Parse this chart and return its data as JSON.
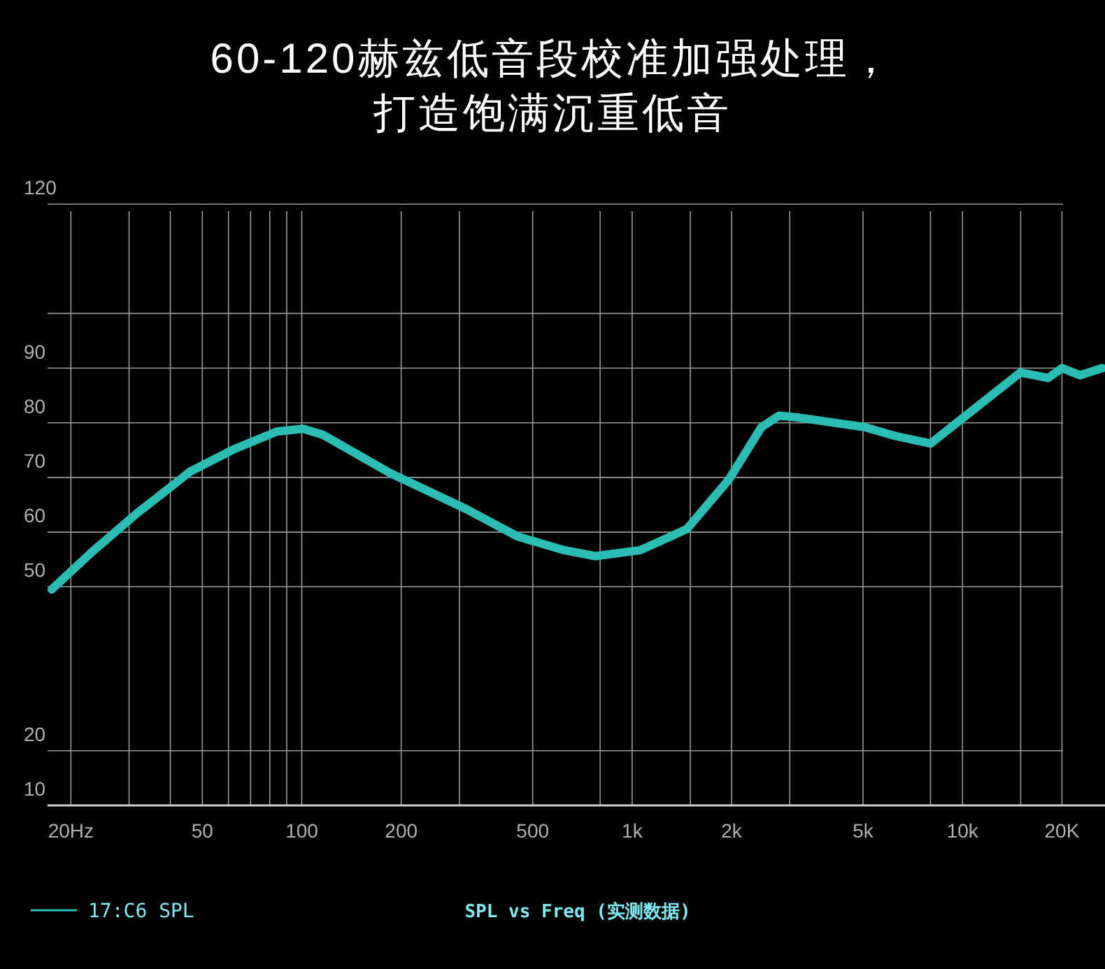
{
  "chart_data": {
    "type": "line",
    "title": "60-120赫兹低音段校准加强处理，",
    "subtitle": "打造饱满沉重低音",
    "x": [
      17.5,
      23,
      31.5,
      46,
      62,
      84,
      101,
      116,
      185,
      315,
      450,
      622,
      774,
      1059,
      1309,
      1467,
      1967,
      2462,
      2784,
      3148,
      5062,
      6250,
      8000,
      14980,
      18160,
      20000,
      22670,
      26500
    ],
    "series": [
      {
        "name": "17:C6 SPL",
        "color": "#2bbcb4",
        "values": [
          49.5,
          56.2,
          63.3,
          71.1,
          75.1,
          78.4,
          78.9,
          77.8,
          70.8,
          64.2,
          59.2,
          56.7,
          55.6,
          56.7,
          59.2,
          60.6,
          69.7,
          79.2,
          81.3,
          81.0,
          79.2,
          77.6,
          76.2,
          89.2,
          88.2,
          90,
          88.7,
          90
        ]
      }
    ],
    "log": "x",
    "xlim": [
      17,
      27000
    ],
    "xticks": [
      {
        "value": 20,
        "label": "20Hz"
      },
      {
        "value": 30,
        "label": null
      },
      {
        "value": 40,
        "label": null
      },
      50,
      {
        "value": 60,
        "label": null
      },
      {
        "value": 70,
        "label": null
      },
      {
        "value": 80,
        "label": null
      },
      {
        "value": 90,
        "label": null
      },
      100,
      200,
      {
        "value": 300,
        "label": null
      },
      500,
      {
        "value": 800,
        "label": null
      },
      {
        "value": 1000,
        "label": "1k"
      },
      {
        "value": 1500,
        "label": null
      },
      {
        "value": 2000,
        "label": "2k"
      },
      {
        "value": 3000,
        "label": null
      },
      {
        "value": 5000,
        "label": "5k"
      },
      {
        "value": 8000,
        "label": null
      },
      {
        "value": 10000,
        "label": "10k"
      },
      {
        "value": 15000,
        "label": null
      },
      {
        "value": 20000,
        "label": "20K"
      }
    ],
    "ylim": [
      10,
      120
    ],
    "yticks": [
      10,
      20,
      50,
      60,
      70,
      80,
      90,
      {
        "value": 100,
        "label": null
      },
      120
    ],
    "grid": true,
    "legend": "bottom left",
    "annotations": [
      "SPL vs Freq (实测数据)"
    ]
  }
}
